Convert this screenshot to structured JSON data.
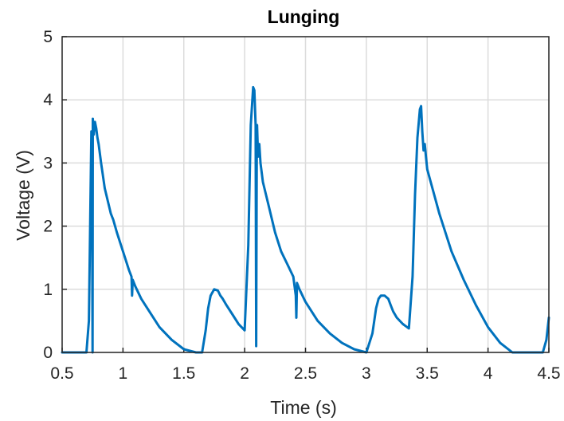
{
  "chart_data": {
    "type": "line",
    "title": "Lunging",
    "xlabel": "Time (s)",
    "ylabel": "Voltage (V)",
    "xlim": [
      0.5,
      4.5
    ],
    "ylim": [
      0,
      5
    ],
    "x_ticks": [
      "0.5",
      "1",
      "1.5",
      "2",
      "2.5",
      "3",
      "3.5",
      "4",
      "4.5"
    ],
    "y_ticks": [
      "0",
      "1",
      "2",
      "3",
      "4",
      "5"
    ],
    "grid": true,
    "line_color": "#0072BD",
    "series": [
      {
        "x": [
          0.5,
          0.6,
          0.7,
          0.72,
          0.74,
          0.745,
          0.75,
          0.752,
          0.76,
          0.77,
          0.78,
          0.79,
          0.8,
          0.82,
          0.85,
          0.9,
          0.92,
          0.95,
          1.0,
          1.05,
          1.07,
          1.075,
          1.08,
          1.1,
          1.15,
          1.2,
          1.3,
          1.4,
          1.5,
          1.6,
          1.65,
          1.68,
          1.7,
          1.72,
          1.75,
          1.78,
          1.8,
          1.82,
          1.85,
          1.9,
          1.95,
          2.0,
          2.03,
          2.05,
          2.07,
          2.08,
          2.09,
          2.095,
          2.1,
          2.102,
          2.11,
          2.12,
          2.13,
          2.15,
          2.2,
          2.25,
          2.3,
          2.35,
          2.4,
          2.42,
          2.425,
          2.43,
          2.45,
          2.5,
          2.6,
          2.7,
          2.8,
          2.9,
          3.0,
          3.05,
          3.08,
          3.1,
          3.12,
          3.15,
          3.18,
          3.2,
          3.22,
          3.25,
          3.3,
          3.35,
          3.38,
          3.4,
          3.42,
          3.44,
          3.45,
          3.46,
          3.47,
          3.48,
          3.49,
          3.5,
          3.55,
          3.6,
          3.7,
          3.8,
          3.9,
          4.0,
          4.1,
          4.2,
          4.25,
          4.3,
          4.4,
          4.45,
          4.48,
          4.5
        ],
        "y": [
          0,
          0,
          0,
          0.5,
          3.5,
          3.2,
          0,
          3.7,
          3.45,
          3.65,
          3.55,
          3.4,
          3.3,
          3.0,
          2.6,
          2.2,
          2.1,
          1.9,
          1.6,
          1.3,
          1.2,
          0.9,
          1.15,
          1.05,
          0.85,
          0.7,
          0.4,
          0.2,
          0.05,
          0,
          0,
          0.35,
          0.7,
          0.9,
          1.0,
          0.98,
          0.9,
          0.85,
          0.75,
          0.6,
          0.45,
          0.35,
          1.7,
          3.6,
          4.2,
          4.15,
          3.6,
          0.1,
          3.5,
          3.6,
          3.1,
          3.3,
          3.0,
          2.7,
          2.3,
          1.9,
          1.6,
          1.4,
          1.2,
          0.9,
          0.55,
          1.1,
          1.0,
          0.8,
          0.5,
          0.3,
          0.15,
          0.05,
          0,
          0.3,
          0.7,
          0.85,
          0.9,
          0.9,
          0.85,
          0.75,
          0.65,
          0.55,
          0.45,
          0.38,
          1.2,
          2.5,
          3.4,
          3.85,
          3.9,
          3.5,
          3.2,
          3.3,
          3.1,
          2.9,
          2.55,
          2.2,
          1.6,
          1.15,
          0.75,
          0.4,
          0.15,
          0,
          0,
          0,
          0,
          0,
          0.2,
          0.55
        ]
      }
    ]
  }
}
